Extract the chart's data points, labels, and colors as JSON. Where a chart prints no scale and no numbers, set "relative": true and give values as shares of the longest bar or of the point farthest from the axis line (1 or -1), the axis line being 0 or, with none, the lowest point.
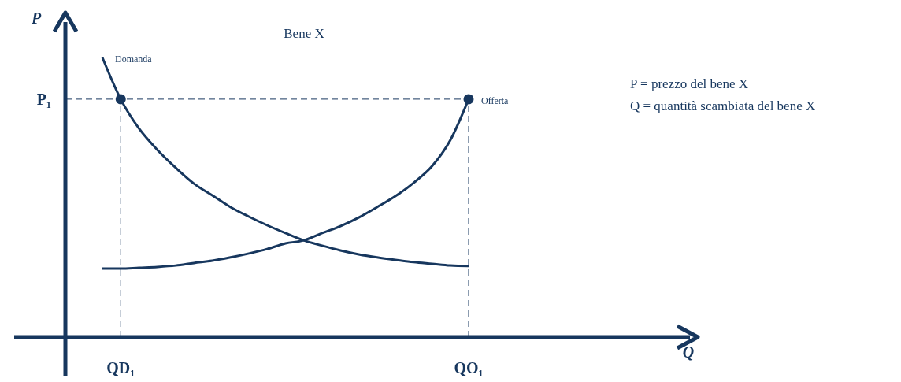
{
  "chart_data": {
    "type": "line",
    "title": "Bene X",
    "xlabel": "Q",
    "ylabel": "P",
    "relative": true,
    "categories": [
      null,
      "QD₁",
      null,
      null,
      null,
      null,
      null,
      null,
      null,
      null,
      null,
      null,
      null,
      null,
      null,
      null,
      null,
      null,
      null,
      null,
      "QO₁",
      null,
      null,
      null,
      null,
      null,
      null,
      null,
      null,
      null,
      null,
      null,
      null
    ],
    "series": [
      {
        "name": "Domanda",
        "color": "#17375e",
        "values": [
          1,
          0.851,
          0.746,
          0.67,
          0.606,
          0.549,
          0.507,
          0.465,
          0.431,
          0.4,
          0.372,
          0.346,
          0.327,
          0.31,
          0.296,
          0.285,
          0.276,
          0.268,
          0.262,
          0.256,
          0.254,
          null,
          null,
          null,
          null,
          null,
          null,
          null,
          null,
          null,
          null,
          null,
          null
        ]
      },
      {
        "name": "Offerta",
        "color": "#17375e",
        "values": [
          0.245,
          0.245,
          0.248,
          0.251,
          0.256,
          0.265,
          0.273,
          0.285,
          0.299,
          0.315,
          0.335,
          0.346,
          0.372,
          0.397,
          0.428,
          0.465,
          0.504,
          0.552,
          0.611,
          0.704,
          0.851,
          null,
          null,
          null,
          null,
          null,
          null,
          null,
          null,
          null,
          null,
          null,
          null
        ]
      },
      {
        "type": "scatter",
        "color": "#17375e",
        "x": [
          "QD₁",
          "QO₁"
        ],
        "values": [
          0.851,
          0.851
        ]
      }
    ],
    "ref_lines": [
      {
        "axis": "y",
        "value": 0.851,
        "label": "P₁",
        "line_style": "dashed",
        "color": "#17375e"
      },
      {
        "axis": "x",
        "value": "QD₁",
        "line_style": "dashed",
        "color": "#17375e"
      },
      {
        "axis": "x",
        "value": "QO₁",
        "line_style": "dashed",
        "color": "#17375e"
      }
    ],
    "annotations": [
      "P = prezzo del bene X",
      "Q = quantità scambiata del bene X"
    ]
  }
}
